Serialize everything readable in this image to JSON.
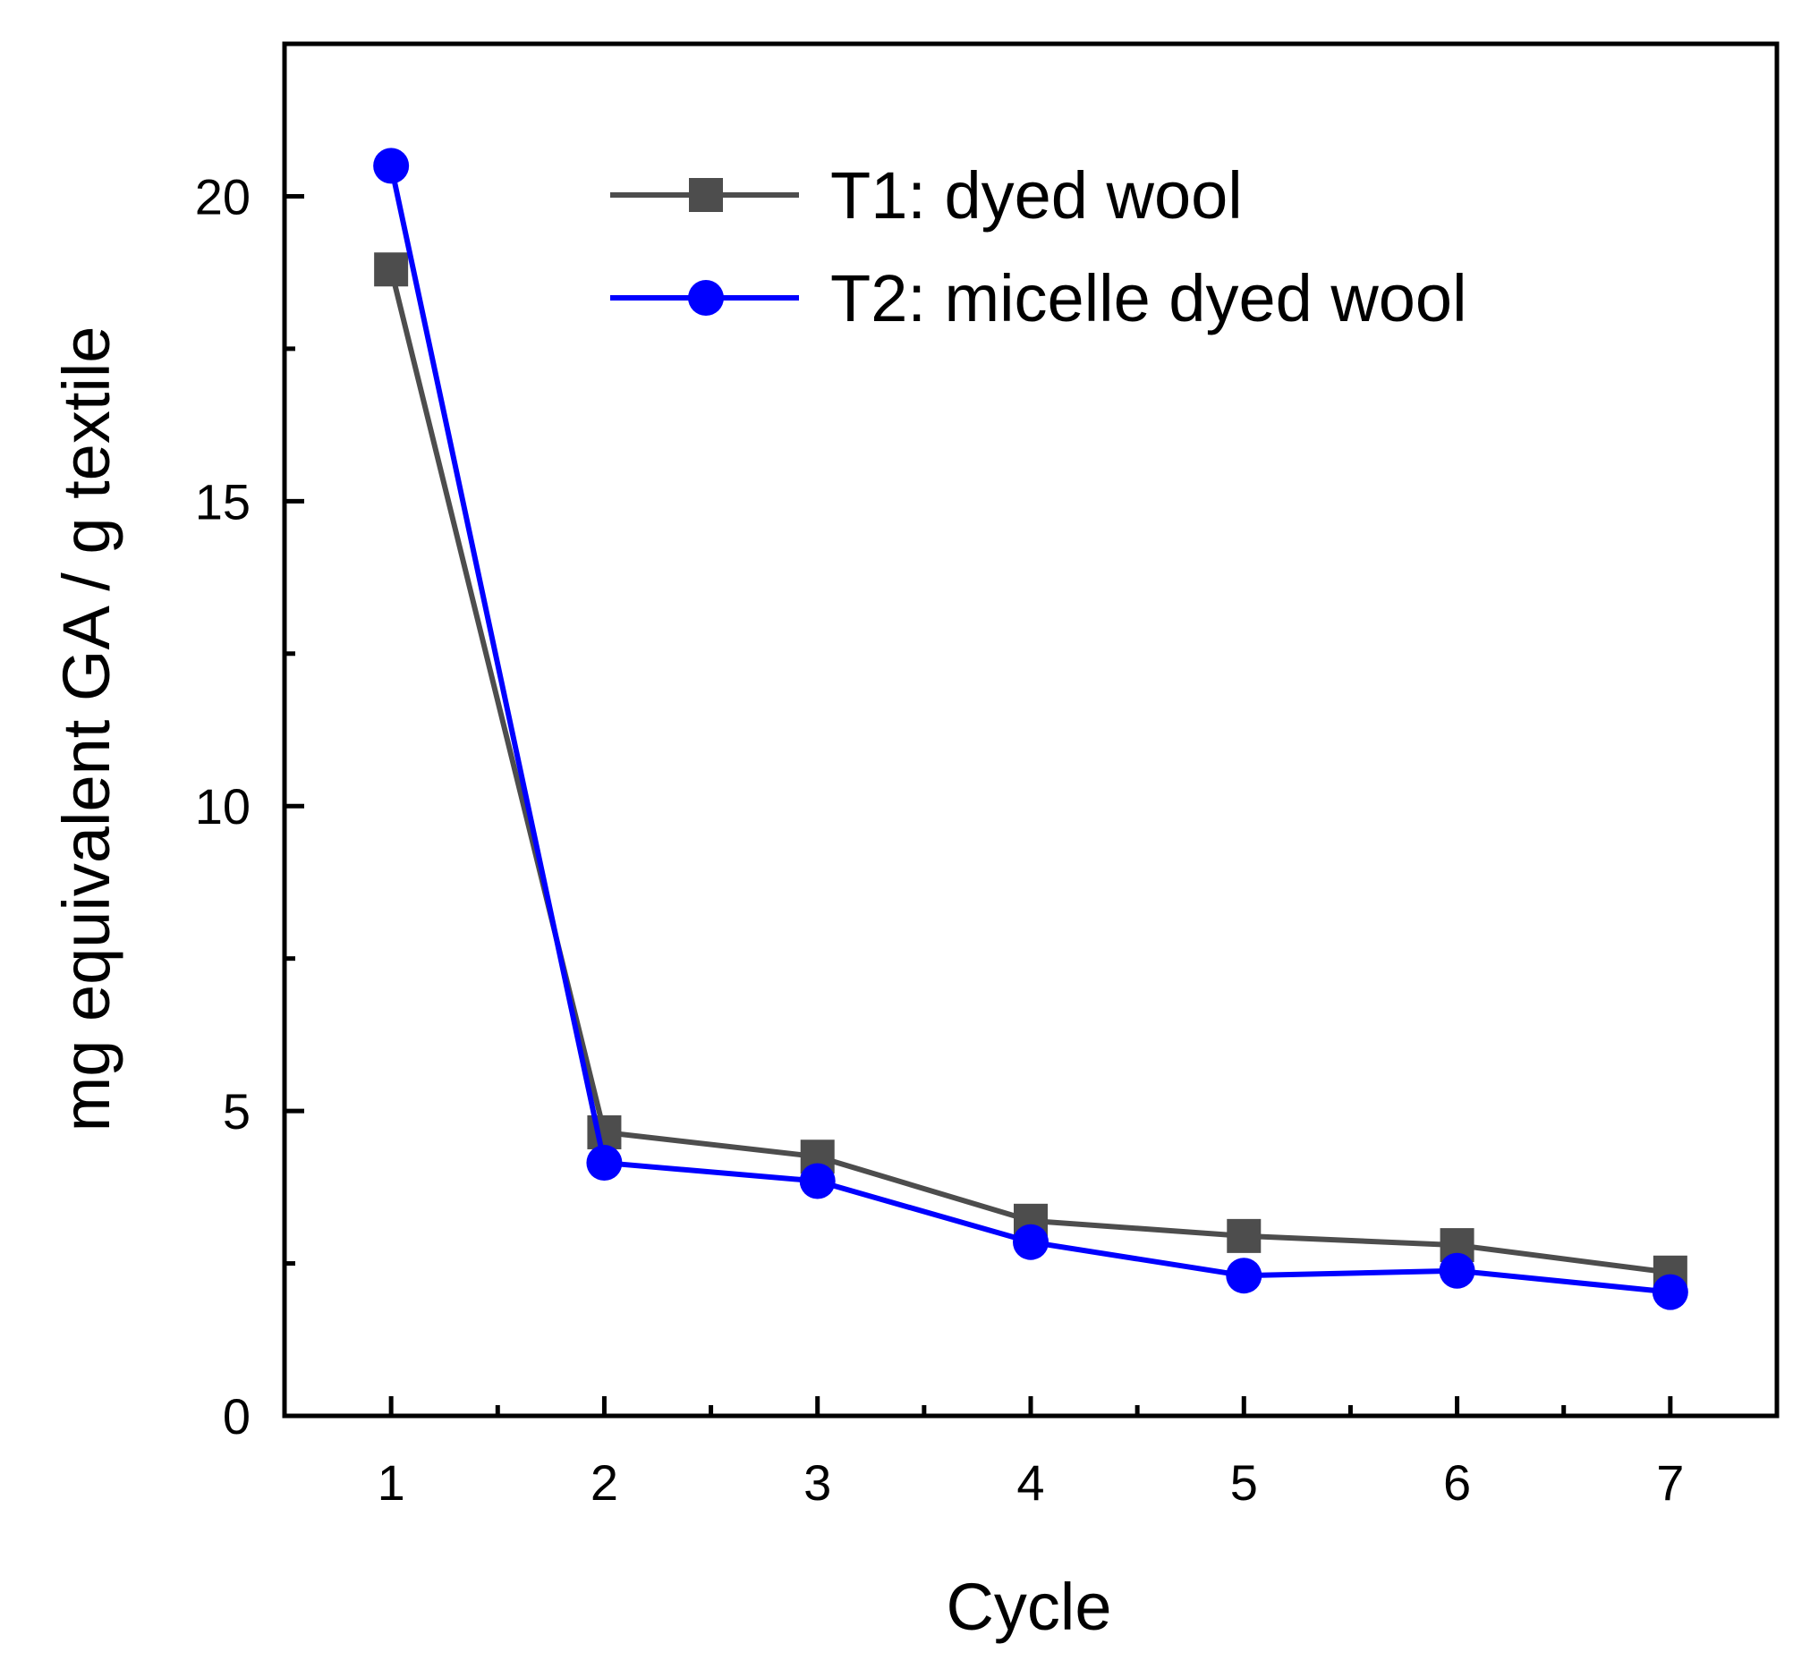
{
  "chart_data": {
    "type": "line",
    "title": "",
    "xlabel": "Cycle",
    "ylabel": "mg equivalent GA / g textile",
    "categories": [
      1,
      2,
      3,
      4,
      5,
      6,
      7
    ],
    "x_tick_labels": [
      "1",
      "2",
      "3",
      "4",
      "5",
      "6",
      "7"
    ],
    "xlim": [
      0.5,
      7.5
    ],
    "ylim": [
      0,
      22.5
    ],
    "y_ticks": [
      0,
      5,
      10,
      15,
      20
    ],
    "y_tick_labels": [
      "0",
      "5",
      "10",
      "15",
      "20"
    ],
    "y_minor_ticks": [
      2.5,
      7.5,
      12.5,
      17.5
    ],
    "x_minor_ticks": [
      1.5,
      2.5,
      3.5,
      4.5,
      5.5,
      6.5
    ],
    "grid": false,
    "legend_position": "top-right",
    "series": [
      {
        "name": "T1:   dyed wool",
        "marker": "square",
        "color": "#4d4d4d",
        "values": [
          18.8,
          4.65,
          4.25,
          3.2,
          2.95,
          2.8,
          2.35
        ]
      },
      {
        "name": "T2:   micelle dyed wool",
        "marker": "circle",
        "color": "#0000ff",
        "values": [
          20.5,
          4.15,
          3.85,
          2.85,
          2.3,
          2.38,
          2.03
        ]
      }
    ]
  }
}
